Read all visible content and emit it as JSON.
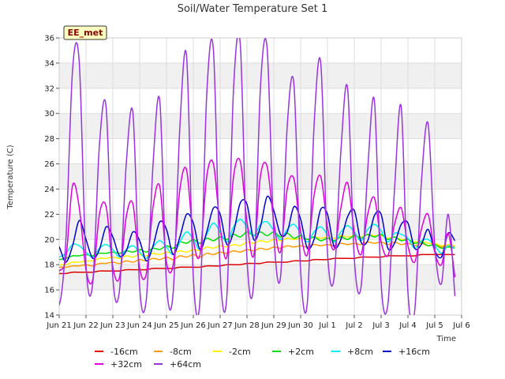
{
  "chart_data": {
    "type": "line",
    "title": "Soil/Water Temperature Set 1",
    "xlabel": "Time",
    "ylabel": "Temperature (C)",
    "ylim": [
      14,
      36
    ],
    "xlim": [
      "2023-06-21",
      "2023-07-06"
    ],
    "y_ticks": [
      "14",
      "16",
      "18",
      "20",
      "22",
      "24",
      "26",
      "28",
      "30",
      "32",
      "34",
      "36"
    ],
    "x_ticks": [
      "Jun 21",
      "Jun 22",
      "Jun 23",
      "Jun 24",
      "Jun 25",
      "Jun 26",
      "Jun 27",
      "Jun 28",
      "Jun 29",
      "Jun 30",
      "Jul 1",
      "Jul 2",
      "Jul 3",
      "Jul 4",
      "Jul 5",
      "Jul 6"
    ],
    "grid": true,
    "legend_position": "bottom",
    "badge": "EE_met",
    "x": [
      "2023-06-20 18:00",
      "2023-06-21 00:00",
      "2023-06-21 06:00",
      "2023-06-21 12:00",
      "2023-06-21 18:00",
      "2023-06-22 00:00",
      "2023-06-22 06:00",
      "2023-06-22 12:00",
      "2023-06-22 18:00",
      "2023-06-23 00:00",
      "2023-06-23 06:00",
      "2023-06-23 12:00",
      "2023-06-23 18:00",
      "2023-06-24 00:00",
      "2023-06-24 06:00",
      "2023-06-24 12:00",
      "2023-06-24 18:00",
      "2023-06-25 00:00",
      "2023-06-25 06:00",
      "2023-06-25 12:00",
      "2023-06-25 18:00",
      "2023-06-26 00:00",
      "2023-06-26 06:00",
      "2023-06-26 12:00",
      "2023-06-26 18:00",
      "2023-06-27 00:00",
      "2023-06-27 06:00",
      "2023-06-27 12:00",
      "2023-06-27 18:00",
      "2023-06-28 00:00",
      "2023-06-28 06:00",
      "2023-06-28 12:00",
      "2023-06-28 18:00",
      "2023-06-29 00:00",
      "2023-06-29 06:00",
      "2023-06-29 12:00",
      "2023-06-29 18:00",
      "2023-06-30 00:00",
      "2023-06-30 06:00",
      "2023-06-30 12:00",
      "2023-06-30 18:00",
      "2023-07-01 00:00",
      "2023-07-01 06:00",
      "2023-07-01 12:00",
      "2023-07-01 18:00",
      "2023-07-02 00:00",
      "2023-07-02 06:00",
      "2023-07-02 12:00",
      "2023-07-02 18:00",
      "2023-07-03 00:00",
      "2023-07-03 06:00",
      "2023-07-03 12:00",
      "2023-07-03 18:00",
      "2023-07-04 00:00",
      "2023-07-04 06:00",
      "2023-07-04 12:00",
      "2023-07-04 18:00",
      "2023-07-05 00:00",
      "2023-07-05 06:00",
      "2023-07-05 12:00",
      "2023-07-05 18:00"
    ],
    "series": [
      {
        "name": "-16cm",
        "color": "#dd0000",
        "values": [
          17.3,
          17.3,
          17.3,
          17.4,
          17.4,
          17.4,
          17.4,
          17.5,
          17.5,
          17.5,
          17.5,
          17.6,
          17.6,
          17.6,
          17.6,
          17.7,
          17.7,
          17.7,
          17.7,
          17.8,
          17.8,
          17.8,
          17.8,
          17.9,
          17.9,
          17.9,
          18.0,
          18.0,
          18.0,
          18.1,
          18.1,
          18.1,
          18.2,
          18.2,
          18.2,
          18.2,
          18.3,
          18.3,
          18.3,
          18.4,
          18.4,
          18.4,
          18.5,
          18.5,
          18.5,
          18.5,
          18.6,
          18.6,
          18.6,
          18.6,
          18.7,
          18.7,
          18.7,
          18.7,
          18.7,
          18.8,
          18.8,
          18.8,
          18.8,
          18.8,
          18.8
        ]
      },
      {
        "name": "-8cm",
        "color": "#ff9900",
        "values": [
          17.7,
          17.8,
          17.8,
          17.9,
          17.9,
          18.0,
          17.9,
          18.1,
          18.1,
          18.2,
          18.1,
          18.3,
          18.2,
          18.4,
          18.3,
          18.5,
          18.4,
          18.6,
          18.4,
          18.7,
          18.6,
          18.8,
          18.6,
          18.9,
          18.8,
          19.0,
          18.9,
          19.1,
          19.0,
          19.2,
          19.1,
          19.3,
          19.2,
          19.4,
          19.3,
          19.5,
          19.4,
          19.5,
          19.4,
          19.6,
          19.5,
          19.6,
          19.5,
          19.7,
          19.6,
          19.7,
          19.6,
          19.8,
          19.7,
          19.8,
          19.6,
          19.8,
          19.6,
          19.7,
          19.5,
          19.7,
          19.5,
          19.6,
          19.4,
          19.5,
          19.4
        ]
      },
      {
        "name": "-2cm",
        "color": "#ffee00",
        "values": [
          17.9,
          18.0,
          18.0,
          18.2,
          18.2,
          18.3,
          18.3,
          18.5,
          18.5,
          18.6,
          18.5,
          18.7,
          18.6,
          18.8,
          18.7,
          18.9,
          18.8,
          19.0,
          18.9,
          19.1,
          19.0,
          19.2,
          19.1,
          19.4,
          19.3,
          19.5,
          19.4,
          19.6,
          19.5,
          19.8,
          19.7,
          19.9,
          19.8,
          20.0,
          19.9,
          20.1,
          20.0,
          20.1,
          20.0,
          20.2,
          20.1,
          20.2,
          20.1,
          20.3,
          20.2,
          20.3,
          20.2,
          20.4,
          20.3,
          20.3,
          20.1,
          20.2,
          20.0,
          20.0,
          19.8,
          19.9,
          19.7,
          19.7,
          19.5,
          19.6,
          19.5
        ]
      },
      {
        "name": "+2cm",
        "color": "#00dd00",
        "values": [
          18.3,
          18.4,
          18.5,
          18.7,
          18.7,
          18.8,
          18.7,
          18.9,
          18.9,
          19.0,
          18.9,
          19.1,
          19.0,
          19.2,
          19.0,
          19.3,
          19.2,
          19.5,
          19.3,
          19.8,
          19.7,
          20.0,
          19.7,
          20.1,
          19.9,
          20.2,
          20.0,
          20.4,
          20.2,
          20.6,
          20.3,
          20.6,
          20.3,
          20.6,
          20.2,
          20.5,
          20.1,
          20.3,
          20.0,
          20.2,
          19.9,
          20.1,
          19.9,
          20.2,
          20.0,
          20.3,
          20.1,
          20.4,
          20.2,
          20.4,
          20.0,
          20.2,
          19.9,
          20.0,
          19.7,
          19.8,
          19.5,
          19.6,
          19.3,
          19.4,
          19.3
        ]
      },
      {
        "name": "+8cm",
        "color": "#00eeee",
        "values": [
          18.4,
          18.6,
          18.9,
          19.6,
          19.5,
          19.0,
          18.6,
          19.3,
          19.6,
          19.2,
          18.6,
          19.2,
          19.5,
          19.0,
          18.5,
          19.4,
          19.9,
          19.4,
          18.8,
          19.8,
          20.6,
          20.0,
          19.2,
          20.4,
          21.3,
          20.6,
          19.8,
          21.0,
          21.6,
          21.0,
          20.3,
          21.2,
          21.4,
          20.7,
          20.0,
          20.8,
          21.2,
          20.5,
          19.8,
          20.6,
          21.0,
          20.4,
          19.8,
          20.6,
          21.1,
          20.6,
          19.9,
          20.8,
          21.2,
          20.7,
          19.8,
          20.5,
          20.4,
          20.1,
          19.3,
          19.9,
          20.0,
          19.5,
          18.9,
          19.5,
          19.3
        ]
      },
      {
        "name": "+16cm",
        "color": "#0000cc",
        "values": [
          19.9,
          19.4,
          18.2,
          19.5,
          21.5,
          20.0,
          18.5,
          19.2,
          21.0,
          20.2,
          18.7,
          19.1,
          20.6,
          19.9,
          18.3,
          19.5,
          21.4,
          20.8,
          18.8,
          20.2,
          22.0,
          21.3,
          19.2,
          20.6,
          22.5,
          22.0,
          19.6,
          20.6,
          22.9,
          22.8,
          20.0,
          21.0,
          23.4,
          22.3,
          20.4,
          20.6,
          22.6,
          21.6,
          19.3,
          20.0,
          22.4,
          22.0,
          19.4,
          20.0,
          21.8,
          22.3,
          19.8,
          19.9,
          21.9,
          22.0,
          19.3,
          19.7,
          21.2,
          21.3,
          19.3,
          19.6,
          20.8,
          19.1,
          18.6,
          20.5,
          19.9
        ]
      },
      {
        "name": "+32cm",
        "color": "#dd00dd",
        "values": [
          17.0,
          17.5,
          18.5,
          24.3,
          22.5,
          17.6,
          16.8,
          22.0,
          22.6,
          17.8,
          17.0,
          21.8,
          22.8,
          17.7,
          17.3,
          22.6,
          24.2,
          18.2,
          18.0,
          24.0,
          25.5,
          20.0,
          18.8,
          25.0,
          26.0,
          21.0,
          18.6,
          25.0,
          26.2,
          21.4,
          18.7,
          25.0,
          25.8,
          21.4,
          19.0,
          24.0,
          24.8,
          20.6,
          18.8,
          23.5,
          25.0,
          21.0,
          19.2,
          22.5,
          24.5,
          20.6,
          18.8,
          22.0,
          23.3,
          19.8,
          18.7,
          21.2,
          22.5,
          19.5,
          18.2,
          20.8,
          22.0,
          19.0,
          18.0,
          20.5,
          17.0
        ]
      },
      {
        "name": "+64cm",
        "color": "#9933dd",
        "values": [
          17.2,
          14.8,
          20.0,
          33.5,
          34.0,
          18.0,
          16.5,
          27.5,
          30.5,
          17.0,
          16.0,
          26.0,
          30.0,
          16.2,
          15.3,
          26.0,
          31.0,
          16.5,
          15.8,
          29.0,
          34.5,
          17.0,
          15.2,
          31.5,
          35.0,
          17.5,
          15.5,
          32.0,
          35.5,
          18.5,
          16.5,
          32.0,
          35.2,
          20.5,
          17.0,
          29.0,
          32.3,
          17.5,
          15.0,
          29.0,
          34.0,
          19.0,
          17.0,
          27.0,
          32.0,
          18.5,
          16.2,
          25.5,
          31.0,
          16.5,
          14.8,
          24.0,
          30.5,
          15.8,
          14.3,
          24.5,
          29.2,
          19.5,
          16.5,
          22.0,
          15.5
        ]
      }
    ]
  }
}
